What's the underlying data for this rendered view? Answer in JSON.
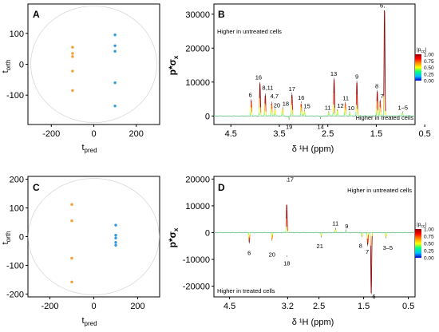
{
  "panels": [
    {
      "id": "A",
      "type": "scatter",
      "label": "A",
      "xlabel_main": "t",
      "xlabel_sub": "pred",
      "ylabel_main": "t",
      "ylabel_sub": "orth",
      "xlim": [
        -310,
        310
      ],
      "ylim": [
        -195,
        195
      ],
      "xticks": [
        -200,
        0,
        200
      ],
      "yticks": [
        100,
        0,
        -100
      ],
      "groups": [
        {
          "color": "#f39c34",
          "points": [
            [
              -100,
              55
            ],
            [
              -100,
              35
            ],
            [
              -100,
              25
            ],
            [
              -100,
              -22
            ],
            [
              -100,
              -85
            ]
          ]
        },
        {
          "color": "#2f9ae0",
          "points": [
            [
              100,
              95
            ],
            [
              100,
              60
            ],
            [
              100,
              42
            ],
            [
              100,
              -60
            ],
            [
              100,
              -135
            ]
          ]
        }
      ]
    },
    {
      "id": "C",
      "type": "scatter",
      "label": "C",
      "xlabel_main": "t",
      "xlabel_sub": "pred",
      "ylabel_main": "t",
      "ylabel_sub": "orth",
      "xlim": [
        -300,
        300
      ],
      "ylim": [
        -210,
        210
      ],
      "xticks": [
        -200,
        0,
        200
      ],
      "yticks": [
        200,
        100,
        0,
        -100,
        -200
      ],
      "groups": [
        {
          "color": "#f39c34",
          "points": [
            [
              -100,
              112
            ],
            [
              -100,
              55
            ],
            [
              -100,
              -75
            ],
            [
              -100,
              -158
            ]
          ]
        },
        {
          "color": "#2f9ae0",
          "points": [
            [
              100,
              40
            ],
            [
              100,
              5
            ],
            [
              100,
              -5
            ],
            [
              100,
              -20
            ],
            [
              100,
              -30
            ]
          ]
        }
      ]
    },
    {
      "id": "B",
      "type": "line",
      "label": "B",
      "ylabel": "p*σ",
      "ylabel_sub": "x",
      "xlabel": "δ ¹H (ppm)",
      "xlim": [
        4.85,
        0.7
      ],
      "ylim": [
        -2500,
        33000
      ],
      "xticks": [
        4.5,
        3.5,
        2.5,
        1.5,
        0.5
      ],
      "yticks": [
        30000,
        20000,
        10000,
        0
      ],
      "note_top": "Higher in untreated cells",
      "note_bottom": "Higher in treated cells",
      "peaks": [
        {
          "x": 4.08,
          "y": 4500,
          "label": "6",
          "lx": 4.1,
          "ly": 5600
        },
        {
          "x": 3.9,
          "y": 9500,
          "label": "16",
          "lx": 3.93,
          "ly": 10800
        },
        {
          "x": 3.79,
          "y": 6200,
          "label": "8,11",
          "lx": 3.74,
          "ly": 7700
        },
        {
          "x": 3.66,
          "y": 3800,
          "label": "4,7",
          "lx": 3.6,
          "ly": 5200
        },
        {
          "x": 3.59,
          "y": 1800,
          "label": "20",
          "lx": 3.55,
          "ly": 2600
        },
        {
          "x": 3.43,
          "y": 2100,
          "label": "18",
          "lx": 3.37,
          "ly": 3000
        },
        {
          "x": 3.24,
          "y": 6400,
          "label": "17",
          "lx": 3.24,
          "ly": 7400
        },
        {
          "x": 3.05,
          "y": 3800,
          "label": "16",
          "lx": 3.05,
          "ly": 4800
        },
        {
          "x": 2.98,
          "y": 1400,
          "label": "15",
          "lx": 2.93,
          "ly": 2300
        },
        {
          "x": 2.48,
          "y": 1000,
          "label": "11",
          "lx": 2.5,
          "ly": 1900
        },
        {
          "x": 2.37,
          "y": 10800,
          "label": "13",
          "lx": 2.38,
          "ly": 11800
        },
        {
          "x": 2.3,
          "y": 1500,
          "label": "12",
          "lx": 2.24,
          "ly": 2400
        },
        {
          "x": 2.14,
          "y": 3700,
          "label": "11",
          "lx": 2.13,
          "ly": 4700
        },
        {
          "x": 2.05,
          "y": 900,
          "label": "10",
          "lx": 2.02,
          "ly": 1700
        },
        {
          "x": 1.9,
          "y": 10000,
          "label": "9",
          "lx": 1.9,
          "ly": 11000
        },
        {
          "x": 1.48,
          "y": 7200,
          "label": "8",
          "lx": 1.49,
          "ly": 8200
        },
        {
          "x": 1.42,
          "y": 4400,
          "label": "7",
          "lx": 1.38,
          "ly": 5300
        },
        {
          "x": 1.33,
          "y": 31800,
          "label": "6",
          "lx": 1.39,
          "ly": 32000
        },
        {
          "x": 0.96,
          "y": 900,
          "label": "1–5",
          "lx": 0.95,
          "ly": 1800
        },
        {
          "x": 3.3,
          "y": -700,
          "label": "19",
          "lx": 3.3,
          "ly": -2100
        },
        {
          "x": 2.65,
          "y": -400,
          "label": "14",
          "lx": 2.65,
          "ly": -2100
        }
      ]
    },
    {
      "id": "D",
      "type": "line",
      "label": "D",
      "ylabel": "p*σ",
      "ylabel_sub": "x",
      "xlabel": "δ ¹H (ppm)",
      "xlim": [
        4.85,
        0.35
      ],
      "ylim": [
        -24000,
        21000
      ],
      "xticks": [
        4.5,
        3.2,
        2.5,
        1.5,
        0.5
      ],
      "yticks": [
        20000,
        10000,
        0,
        -10000,
        -20000
      ],
      "note_top": "Higher in untreated cells",
      "note_bottom": "Higher in treated cells",
      "peaks": [
        {
          "x": 4.06,
          "y": -3500,
          "label": "6",
          "lx": 4.06,
          "ly": -6200
        },
        {
          "x": 3.55,
          "y": -2400,
          "label": "20",
          "lx": 3.55,
          "ly": -6900
        },
        {
          "x": 3.22,
          "y": 19000,
          "label": "17",
          "lx": 3.14,
          "ly": 19000
        },
        {
          "x": 3.22,
          "y": -8500,
          "label": "18",
          "lx": 3.22,
          "ly": -10200
        },
        {
          "x": 2.45,
          "y": -1200,
          "label": "21",
          "lx": 2.48,
          "ly": -3700
        },
        {
          "x": 2.13,
          "y": 1200,
          "label": "11",
          "lx": 2.13,
          "ly": 2700
        },
        {
          "x": 1.9,
          "y": 500,
          "label": "9",
          "lx": 1.88,
          "ly": 1600
        },
        {
          "x": 1.54,
          "y": -1000,
          "label": "8",
          "lx": 1.57,
          "ly": -3600
        },
        {
          "x": 1.41,
          "y": -4500,
          "label": "7",
          "lx": 1.42,
          "ly": -5800
        },
        {
          "x": 1.33,
          "y": -22500,
          "label": "6",
          "lx": 1.27,
          "ly": -22500
        },
        {
          "x": 1.0,
          "y": -1500,
          "label": "3–5",
          "lx": 0.96,
          "ly": -4400
        }
      ]
    }
  ],
  "colorbar": {
    "title": "|p",
    "title_sub": "cc",
    "title_end": "|",
    "ticks": [
      "1.00",
      "0.75",
      "0.50",
      "0.25",
      "0.00"
    ],
    "stops": [
      "#8b0000",
      "#ff0000",
      "#ff8c00",
      "#ffff00",
      "#00ff80",
      "#00bfff",
      "#0000cd"
    ]
  }
}
